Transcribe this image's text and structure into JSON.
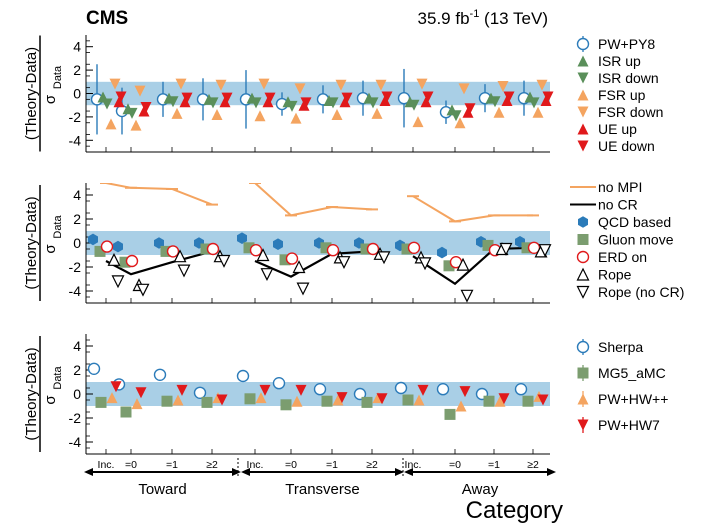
{
  "header": {
    "experiment": "CMS",
    "lumi_value": "35.9 fb",
    "lumi_exp": "-1",
    "energy": " (13 TeV)"
  },
  "xaxis": {
    "category_labels": [
      "Inc.",
      "=0",
      "=1",
      "≥2",
      "Inc.",
      "=0",
      "=1",
      "≥2",
      "Inc.",
      "=0",
      "=1",
      "≥2"
    ],
    "regions": [
      "Toward",
      "Transverse",
      "Away"
    ],
    "title": "Category"
  },
  "colors": {
    "band": "#a9cfe6",
    "pw_py8": "#2b7bb9",
    "isr": "#5a8f5a",
    "fsr": "#f4a460",
    "ue": "#e0191b",
    "no_mpi": "#f4a460",
    "no_cr": "#000000",
    "qcd": "#2b7bb9",
    "gluon": "#7b9d6f",
    "erd": "#e0191b",
    "sherpa": "#2b7bb9",
    "mg5": "#7b9d6f",
    "pwhwpp": "#f4a460",
    "pwhw7": "#e0191b"
  },
  "chart_data": [
    {
      "type": "scatter",
      "panel": "top",
      "ylabel_top": "(Theory-Data)",
      "ylabel_sigma": "σ",
      "ylabel_sub": "Data",
      "ylim": [
        -5,
        5
      ],
      "yticks": [
        4,
        2,
        0,
        -2,
        -4
      ],
      "band": [
        -1,
        1
      ],
      "categories": [
        "Inc.",
        "=0",
        "=1",
        "≥2",
        "Inc.",
        "=0",
        "=1",
        "≥2",
        "Inc.",
        "=0",
        "=1",
        "≥2"
      ],
      "series": [
        {
          "name": "PW+PY8",
          "marker": "circle-open",
          "values": [
            -0.5,
            -1.5,
            -0.5,
            -0.5,
            -0.5,
            -0.9,
            -0.5,
            -0.4,
            -0.4,
            -1.6,
            -0.4,
            -0.4
          ],
          "err": [
            3.0,
            2.0,
            1.5,
            1.8,
            2.5,
            1.0,
            1.2,
            1.5,
            2.5,
            1.0,
            1.2,
            1.5
          ]
        },
        {
          "name": "ISR up",
          "marker": "triangle-up",
          "values": [
            -0.3,
            -1.3,
            -0.4,
            -0.5,
            -0.4,
            -0.7,
            -0.6,
            -0.4,
            -0.7,
            -1.4,
            -0.4,
            -0.3
          ]
        },
        {
          "name": "ISR down",
          "marker": "triangle-down",
          "values": [
            -0.9,
            -1.7,
            -0.7,
            -0.8,
            -0.8,
            -1.1,
            -0.8,
            -0.8,
            -1.0,
            -1.9,
            -0.7,
            -0.8
          ]
        },
        {
          "name": "FSR up",
          "marker": "triangle-up",
          "values": [
            -2.6,
            -2.7,
            -1.7,
            -1.8,
            -1.9,
            -2.1,
            -1.8,
            -1.7,
            -2.4,
            -2.5,
            -1.6,
            -1.6
          ]
        },
        {
          "name": "FSR down",
          "marker": "triangle-down",
          "values": [
            0.8,
            0.2,
            0.8,
            0.7,
            0.8,
            0.4,
            0.7,
            0.7,
            0.8,
            0.4,
            0.6,
            0.7
          ]
        },
        {
          "name": "UE up",
          "marker": "triangle-up",
          "values": [
            -0.7,
            -1.5,
            -0.7,
            -0.7,
            -0.7,
            -1.0,
            -0.7,
            -0.6,
            -0.7,
            -1.6,
            -0.6,
            -0.6
          ]
        },
        {
          "name": "UE down",
          "marker": "triangle-down",
          "values": [
            -0.3,
            -1.2,
            -0.4,
            -0.4,
            -0.4,
            -0.8,
            -0.4,
            -0.3,
            -0.3,
            -1.3,
            -0.3,
            -0.3
          ]
        }
      ]
    },
    {
      "type": "scatter",
      "panel": "middle",
      "ylabel_top": "(Theory-Data)",
      "ylabel_sigma": "σ",
      "ylabel_sub": "Data",
      "ylim": [
        -5,
        5
      ],
      "yticks": [
        4,
        2,
        0,
        -2,
        -4
      ],
      "band": [
        -1,
        1
      ],
      "categories": [
        "Inc.",
        "=0",
        "=1",
        "≥2",
        "Inc.",
        "=0",
        "=1",
        "≥2",
        "Inc.",
        "=0",
        "=1",
        "≥2"
      ],
      "series": [
        {
          "name": "no MPI",
          "marker": "line",
          "values": [
            5.0,
            4.6,
            4.5,
            3.2,
            5.0,
            2.3,
            3.0,
            2.8,
            3.9,
            1.8,
            2.3,
            2.3
          ]
        },
        {
          "name": "no CR",
          "marker": "line",
          "values": [
            -1.5,
            -2.6,
            -1.6,
            -0.7,
            -1.5,
            -2.8,
            -0.9,
            -0.7,
            -1.1,
            -3.4,
            -0.5,
            -0.4
          ]
        },
        {
          "name": "QCD based",
          "marker": "hexagon",
          "values": [
            0.3,
            -0.3,
            0.0,
            0.0,
            0.4,
            -0.1,
            0.0,
            0.0,
            -0.2,
            -0.8,
            0.1,
            0.1
          ]
        },
        {
          "name": "Gluon move",
          "marker": "square",
          "values": [
            -0.7,
            -1.6,
            -0.7,
            -0.5,
            -0.4,
            -1.4,
            -0.4,
            -0.5,
            -0.5,
            -1.9,
            -0.2,
            -0.4
          ]
        },
        {
          "name": "ERD on",
          "marker": "circle-open",
          "values": [
            -0.3,
            -1.5,
            -0.7,
            -0.5,
            -0.6,
            -1.3,
            -0.6,
            -0.5,
            -0.4,
            -1.6,
            -0.6,
            -0.4
          ]
        },
        {
          "name": "Rope",
          "marker": "triangle-up-open",
          "values": [
            -1.4,
            -3.5,
            -1.1,
            -1.1,
            -1.0,
            -2.0,
            -1.2,
            -0.9,
            -1.2,
            -1.8,
            -0.5,
            -0.7
          ]
        },
        {
          "name": "Rope (no CR)",
          "marker": "triangle-down-open",
          "values": [
            -3.2,
            -3.9,
            -2.3,
            -1.5,
            -2.6,
            -3.8,
            -1.6,
            -1.2,
            -1.7,
            -4.4,
            -0.5,
            -0.6
          ]
        }
      ]
    },
    {
      "type": "scatter",
      "panel": "bottom",
      "ylabel_top": "(Theory-Data)",
      "ylabel_sigma": "σ",
      "ylabel_sub": "Data",
      "ylim": [
        -5,
        5
      ],
      "yticks": [
        4,
        2,
        0,
        -2,
        -4
      ],
      "band": [
        -1,
        1
      ],
      "categories": [
        "Inc.",
        "=0",
        "=1",
        "≥2",
        "Inc.",
        "=0",
        "=1",
        "≥2",
        "Inc.",
        "=0",
        "=1",
        "≥2"
      ],
      "series": [
        {
          "name": "Sherpa",
          "marker": "circle-open",
          "values": [
            2.1,
            0.8,
            1.6,
            0.1,
            1.5,
            0.9,
            0.4,
            0.0,
            0.5,
            0.4,
            0.0,
            0.4
          ]
        },
        {
          "name": "MG5_aMC",
          "marker": "square",
          "values": [
            -0.7,
            -1.5,
            -0.6,
            -0.7,
            -0.4,
            -0.9,
            -0.6,
            -0.7,
            -0.5,
            -1.7,
            -0.6,
            -0.6
          ]
        },
        {
          "name": "PW+HW++",
          "marker": "triangle-up",
          "values": [
            -0.3,
            -0.8,
            -0.5,
            -0.3,
            -0.3,
            -0.6,
            -0.5,
            -0.3,
            -0.5,
            -1.0,
            -0.6,
            -0.2
          ]
        },
        {
          "name": "PW+HW7",
          "marker": "triangle-down",
          "values": [
            0.6,
            0.1,
            0.3,
            -0.5,
            0.3,
            0.3,
            -0.3,
            -0.4,
            0.3,
            0.2,
            -0.4,
            -0.5
          ]
        }
      ]
    }
  ]
}
